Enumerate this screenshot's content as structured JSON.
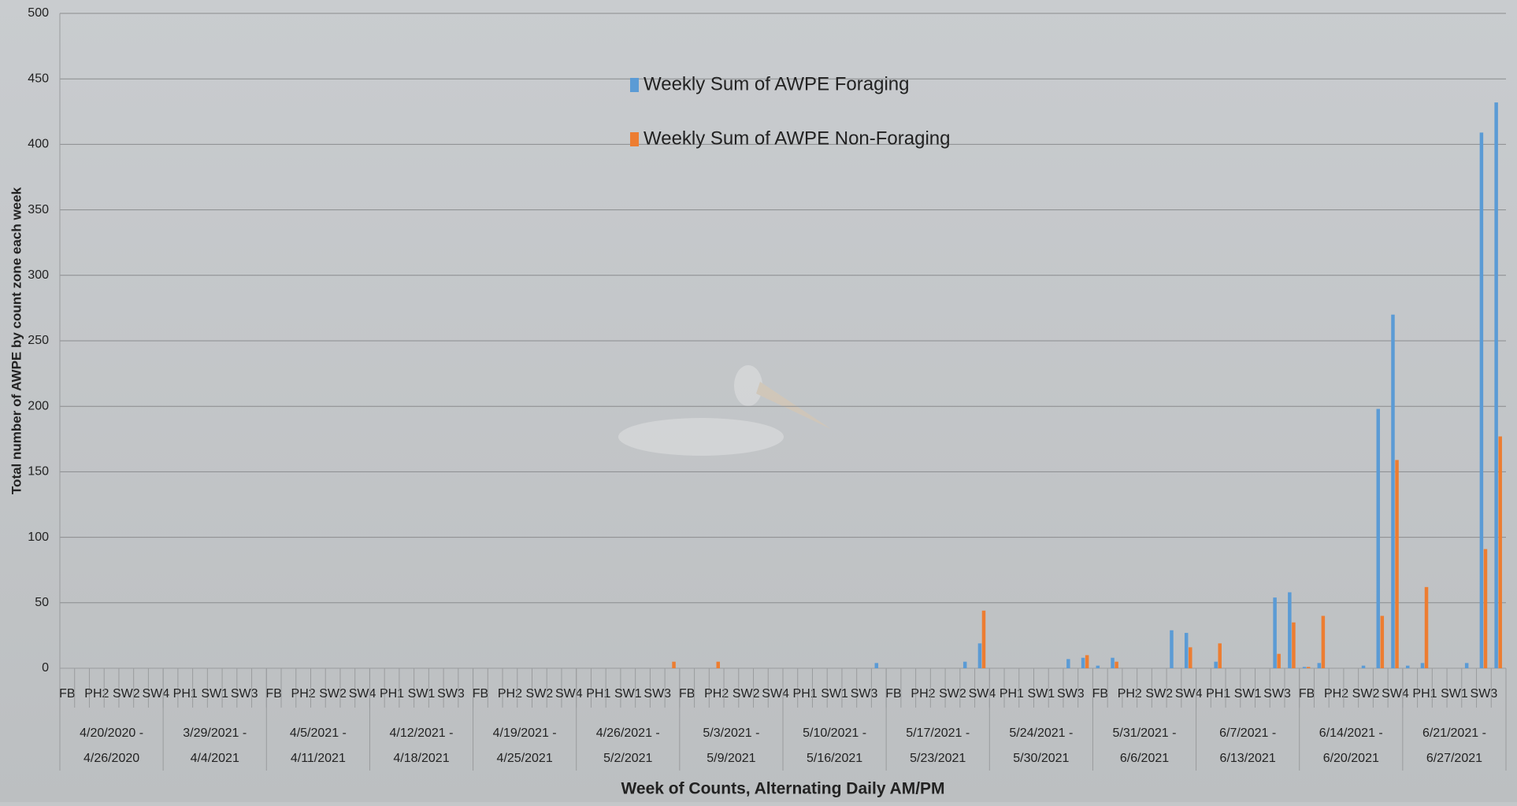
{
  "chart_data": {
    "type": "bar",
    "y_label": "Total number of AWPE by count zone each week",
    "x_label": "Week of Counts, Alternating Daily AM/PM",
    "categories": [
      "FB",
      null,
      "PH2",
      null,
      "SW2",
      null,
      "SW4",
      null,
      "PH1",
      null,
      "SW1",
      null,
      "SW3",
      null,
      "FB",
      null,
      "PH2",
      null,
      "SW2",
      null,
      "SW4",
      null,
      "PH1",
      null,
      "SW1",
      null,
      "SW3",
      null,
      "FB",
      null,
      "PH2",
      null,
      "SW2",
      null,
      "SW4",
      null,
      "PH1",
      null,
      "SW1",
      null,
      "SW3",
      null,
      "FB",
      null,
      "PH2",
      null,
      "SW2",
      null,
      "SW4",
      null,
      "PH1",
      null,
      "SW1",
      null,
      "SW3",
      null,
      "FB",
      null,
      "PH2",
      null,
      "SW2",
      null,
      "SW4",
      null,
      "PH1",
      null,
      "SW1",
      null,
      "SW3",
      null,
      "FB",
      null,
      "PH2",
      null,
      "SW2",
      null,
      "SW4",
      null,
      "PH1",
      null,
      "SW1",
      null,
      "SW3",
      null,
      "FB",
      null,
      "PH2",
      null,
      "SW2",
      null,
      "SW4",
      null,
      "PH1",
      null,
      "SW1",
      null,
      "SW3",
      null
    ],
    "groups": [
      [
        "4/20/2020 -",
        "4/26/2020"
      ],
      [
        "3/29/2021 -",
        "4/4/2021"
      ],
      [
        "4/5/2021 -",
        "4/11/2021"
      ],
      [
        "4/12/2021 -",
        "4/18/2021"
      ],
      [
        "4/19/2021 -",
        "4/25/2021"
      ],
      [
        "4/26/2021 -",
        "5/2/2021"
      ],
      [
        "5/3/2021 -",
        "5/9/2021"
      ],
      [
        "5/10/2021 -",
        "5/16/2021"
      ],
      [
        "5/17/2021 -",
        "5/23/2021"
      ],
      [
        "5/24/2021 -",
        "5/30/2021"
      ],
      [
        "5/31/2021 -",
        "6/6/2021"
      ],
      [
        "6/7/2021 -",
        "6/13/2021"
      ],
      [
        "6/14/2021 -",
        "6/20/2021"
      ],
      [
        "6/21/2021 -",
        "6/27/2021"
      ]
    ],
    "series": [
      {
        "name": "Weekly Sum of AWPE Foraging",
        "color": "#5b9bd5",
        "values": [
          0,
          0,
          0,
          0,
          0,
          0,
          0,
          0,
          0,
          0,
          0,
          0,
          0,
          0,
          0,
          0,
          0,
          0,
          0,
          0,
          0,
          0,
          0,
          0,
          0,
          0,
          0,
          0,
          0,
          0,
          0,
          0,
          0,
          0,
          0,
          0,
          0,
          0,
          0,
          0,
          0,
          0,
          0,
          0,
          0,
          0,
          0,
          0,
          0,
          0,
          0,
          0,
          0,
          0,
          0,
          4,
          0,
          0,
          0,
          0,
          0,
          5,
          19,
          0,
          0,
          0,
          0,
          0,
          7,
          8,
          2,
          8,
          0,
          0,
          0,
          29,
          27,
          0,
          5,
          0,
          0,
          0,
          54,
          58,
          1,
          4,
          0,
          0,
          2,
          198,
          270,
          2,
          4,
          0,
          0,
          4,
          409,
          432
        ]
      },
      {
        "name": "Weekly Sum of AWPE Non-Foraging",
        "color": "#ed7d31",
        "values": [
          0,
          0,
          0,
          0,
          0,
          0,
          0,
          0,
          0,
          0,
          0,
          0,
          0,
          0,
          0,
          0,
          0,
          0,
          0,
          0,
          0,
          0,
          0,
          0,
          0,
          0,
          0,
          0,
          0,
          0,
          0,
          0,
          0,
          0,
          0,
          0,
          0,
          0,
          0,
          0,
          0,
          5,
          0,
          0,
          5,
          0,
          0,
          0,
          0,
          0,
          0,
          0,
          0,
          0,
          0,
          0,
          0,
          0,
          0,
          0,
          0,
          0,
          44,
          0,
          0,
          0,
          0,
          0,
          0,
          10,
          0,
          5,
          0,
          0,
          0,
          0,
          16,
          0,
          19,
          0,
          0,
          0,
          11,
          35,
          1,
          40,
          0,
          0,
          0,
          40,
          159,
          0,
          62,
          0,
          0,
          0,
          91,
          177
        ]
      }
    ],
    "ylim": [
      0,
      500
    ],
    "yticks": [
      0,
      50,
      100,
      150,
      200,
      250,
      300,
      350,
      400,
      450,
      500
    ],
    "grid": true
  }
}
